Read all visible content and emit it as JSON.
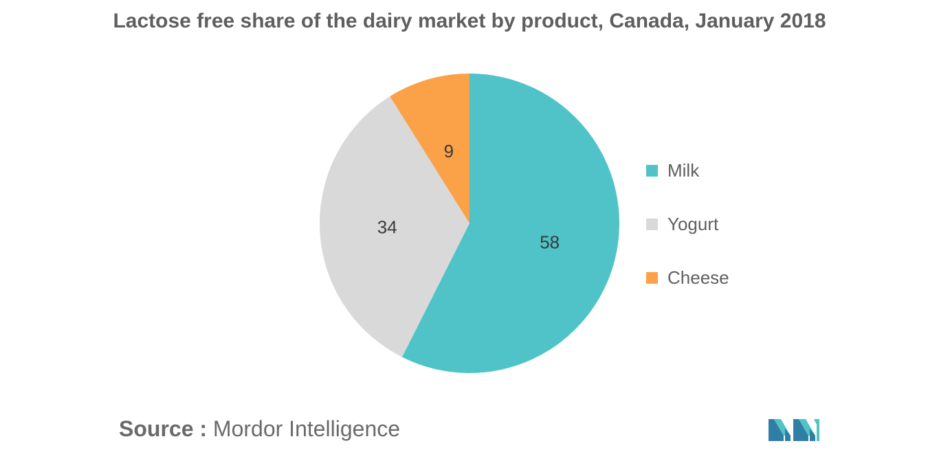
{
  "chart_data": {
    "type": "pie",
    "title": "Lactose free share of the dairy market by product, Canada, January 2018",
    "categories": [
      "Milk",
      "Yogurt",
      "Cheese"
    ],
    "values": [
      58,
      34,
      9
    ],
    "colors": [
      "#4fc3c8",
      "#d9d9d9",
      "#fba148"
    ],
    "legend_position": "right",
    "start_angle": "12 o'clock",
    "direction": "clockwise"
  },
  "source": {
    "label": "Source :",
    "text": "Mordor Intelligence"
  },
  "logo": {
    "icon": "mordor-intelligence-logo",
    "colors": [
      "#2f7fa5",
      "#4fc3c8"
    ]
  }
}
